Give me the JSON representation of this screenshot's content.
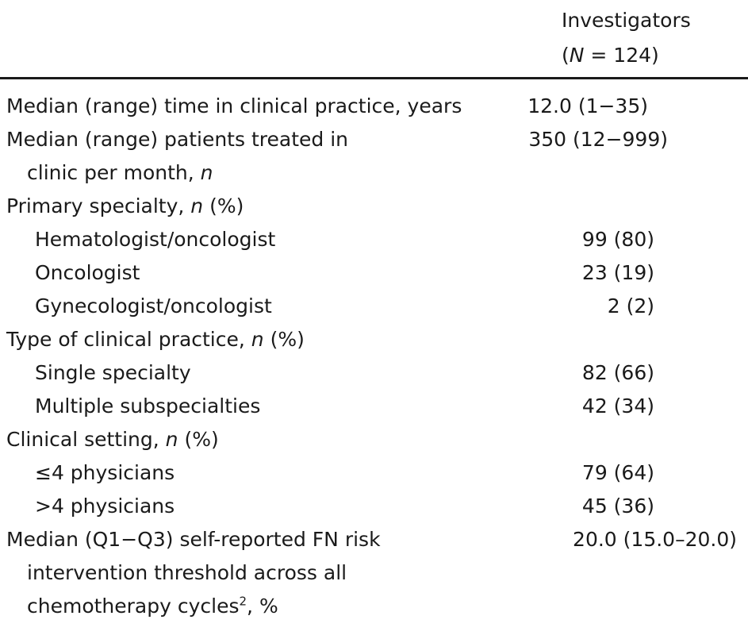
{
  "header": {
    "column_title": "Investigators",
    "column_n_prefix": "(",
    "column_n_symbol": "N",
    "column_n_value": " = 124)"
  },
  "rows": [
    {
      "label": "Median (range) time in clinical practice, years",
      "value": "12.0 (1−35)"
    },
    {
      "label": "Median (range) patients treated in",
      "value": "350 (12−999)"
    },
    {
      "label": "clinic per month, ",
      "label_italic": "n",
      "value": ""
    },
    {
      "label": "Primary specialty, ",
      "label_italic": "n",
      "label_suffix": " (%)",
      "value": ""
    },
    {
      "label": "Hematologist/oncologist",
      "value": "99 (80)"
    },
    {
      "label": "Oncologist",
      "value": "23 (19)"
    },
    {
      "label": "Gynecologist/oncologist",
      "value": "2 (2)"
    },
    {
      "label": "Type of clinical practice, ",
      "label_italic": "n",
      "label_suffix": " (%)",
      "value": ""
    },
    {
      "label": "Single specialty",
      "value": "82 (66)"
    },
    {
      "label": "Multiple subspecialties",
      "value": "42 (34)"
    },
    {
      "label": "Clinical setting, ",
      "label_italic": "n",
      "label_suffix": " (%)",
      "value": ""
    },
    {
      "label": "≤4 physicians",
      "value": "79 (64)"
    },
    {
      "label": ">4 physicians",
      "value": "45 (36)"
    },
    {
      "label": "Median (Q1−Q3) self-reported FN risk",
      "value": "20.0 (15.0–20.0)"
    },
    {
      "label": "intervention threshold across all",
      "value": ""
    },
    {
      "label": "chemotherapy cycles",
      "label_sup": "2",
      "label_suffix": ", %",
      "value": ""
    }
  ]
}
